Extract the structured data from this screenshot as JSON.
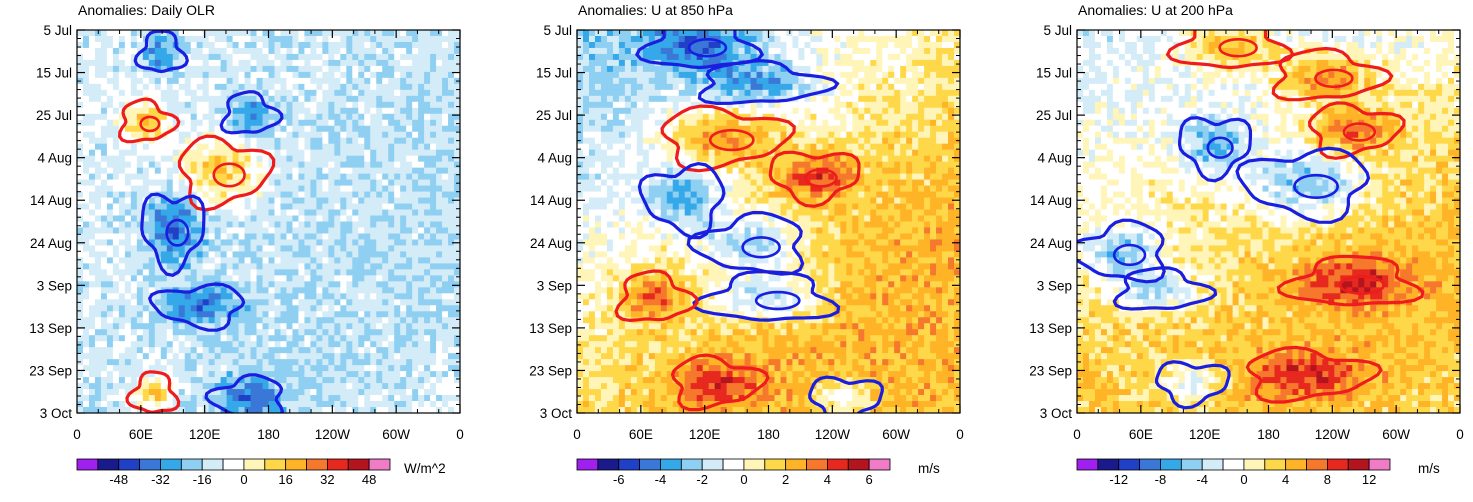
{
  "chart_data": [
    {
      "type": "heatmap",
      "title": "Anomalies: Daily OLR",
      "x_tick_labels": [
        "0",
        "60E",
        "120E",
        "180",
        "120W",
        "60W",
        "0"
      ],
      "y_tick_labels": [
        "5 Jul",
        "15 Jul",
        "25 Jul",
        "4 Aug",
        "14 Aug",
        "24 Aug",
        "3 Sep",
        "13 Sep",
        "23 Sep",
        "3 Oct"
      ],
      "xlim": [
        0,
        360
      ],
      "colorbar_labels": [
        "-48",
        "-32",
        "-16",
        "0",
        "16",
        "32",
        "48"
      ],
      "colorbar_levels": [
        -56,
        -48,
        -40,
        -32,
        -24,
        -16,
        -8,
        0,
        8,
        16,
        24,
        32,
        40,
        48,
        56
      ],
      "units": "W/m^2",
      "contour_colors": {
        "positive": "#ee1c1c",
        "negative": "#1a1ee0"
      }
    },
    {
      "type": "heatmap",
      "title": "Anomalies: U at 850 hPa",
      "x_tick_labels": [
        "0",
        "60E",
        "120E",
        "180",
        "120W",
        "60W",
        "0"
      ],
      "y_tick_labels": [
        "5 Jul",
        "15 Jul",
        "25 Jul",
        "4 Aug",
        "14 Aug",
        "24 Aug",
        "3 Sep",
        "13 Sep",
        "23 Sep",
        "3 Oct"
      ],
      "xlim": [
        0,
        360
      ],
      "colorbar_labels": [
        "-6",
        "-4",
        "-2",
        "0",
        "2",
        "4",
        "6"
      ],
      "colorbar_levels": [
        -7,
        -6,
        -5,
        -4,
        -3,
        -2,
        -1,
        0,
        1,
        2,
        3,
        4,
        5,
        6,
        7
      ],
      "units": "m/s",
      "contour_colors": {
        "positive": "#ee1c1c",
        "negative": "#1a1ee0"
      }
    },
    {
      "type": "heatmap",
      "title": "Anomalies: U at 200 hPa",
      "x_tick_labels": [
        "0",
        "60E",
        "120E",
        "180",
        "120W",
        "60W",
        "0"
      ],
      "y_tick_labels": [
        "5 Jul",
        "15 Jul",
        "25 Jul",
        "4 Aug",
        "14 Aug",
        "24 Aug",
        "3 Sep",
        "13 Sep",
        "23 Sep",
        "3 Oct"
      ],
      "xlim": [
        0,
        360
      ],
      "colorbar_labels": [
        "-12",
        "-8",
        "-4",
        "0",
        "4",
        "8",
        "12"
      ],
      "colorbar_levels": [
        -14,
        -12,
        -10,
        -8,
        -6,
        -4,
        -2,
        0,
        2,
        4,
        6,
        8,
        10,
        12,
        14
      ],
      "units": "m/s",
      "contour_colors": {
        "positive": "#ee1c1c",
        "negative": "#1a1ee0"
      }
    }
  ],
  "colors": {
    "palette": [
      "#a020f0",
      "#1a1a8c",
      "#2040c8",
      "#3a78d8",
      "#34a8e8",
      "#8fd0f2",
      "#d4ecf8",
      "#ffffff",
      "#fff5b8",
      "#ffd84a",
      "#ffb428",
      "#f5782d",
      "#e6281e",
      "#b4141e",
      "#f07cc8"
    ]
  }
}
